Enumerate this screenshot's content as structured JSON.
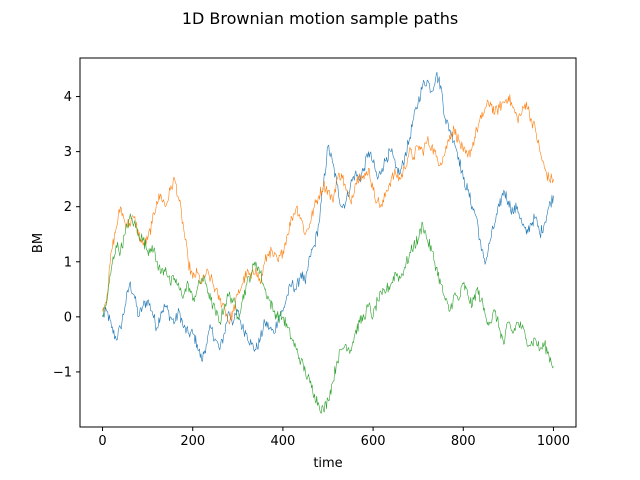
{
  "chart_data": {
    "type": "line",
    "title": "1D Brownian motion sample paths",
    "xlabel": "time",
    "ylabel": "BM",
    "xlim": [
      -50,
      1050
    ],
    "ylim": [
      -2.0,
      4.7
    ],
    "xticks": [
      0,
      200,
      400,
      600,
      800,
      1000
    ],
    "yticks": [
      -1,
      0,
      1,
      2,
      3,
      4
    ],
    "grid": false,
    "legend": "none",
    "series": [
      {
        "color": "#1f77b4",
        "x": [
          0,
          10,
          20,
          30,
          40,
          50,
          60,
          70,
          80,
          90,
          100,
          110,
          120,
          130,
          140,
          150,
          160,
          170,
          180,
          190,
          200,
          210,
          220,
          230,
          240,
          250,
          260,
          270,
          280,
          290,
          300,
          310,
          320,
          330,
          340,
          350,
          360,
          370,
          380,
          390,
          400,
          410,
          420,
          430,
          440,
          450,
          460,
          470,
          480,
          490,
          500,
          510,
          520,
          530,
          540,
          550,
          560,
          570,
          580,
          590,
          600,
          610,
          620,
          630,
          640,
          650,
          660,
          670,
          680,
          690,
          700,
          710,
          720,
          730,
          740,
          750,
          760,
          770,
          780,
          790,
          800,
          810,
          820,
          830,
          840,
          850,
          860,
          870,
          880,
          890,
          900,
          910,
          920,
          930,
          940,
          950,
          960,
          970,
          980,
          990,
          1000
        ],
        "y": [
          0.0,
          0.1,
          -0.2,
          -0.4,
          -0.2,
          0.2,
          0.6,
          0.4,
          0.0,
          0.2,
          0.3,
          0.1,
          -0.2,
          0.1,
          0.2,
          0.0,
          -0.1,
          0.1,
          -0.2,
          -0.3,
          -0.3,
          -0.5,
          -0.8,
          -0.5,
          -0.2,
          -0.4,
          -0.6,
          -0.3,
          0.1,
          -0.1,
          0.1,
          -0.2,
          -0.3,
          -0.5,
          -0.6,
          -0.4,
          -0.1,
          -0.2,
          -0.3,
          0.0,
          0.1,
          0.4,
          0.6,
          0.5,
          0.8,
          0.6,
          1.1,
          1.3,
          1.7,
          2.4,
          3.1,
          2.8,
          2.4,
          2.0,
          2.1,
          2.4,
          2.6,
          2.5,
          2.7,
          3.0,
          2.8,
          2.5,
          2.7,
          2.9,
          3.0,
          2.7,
          2.6,
          2.9,
          3.2,
          3.6,
          3.9,
          4.2,
          4.3,
          4.1,
          4.4,
          4.2,
          3.6,
          3.4,
          3.2,
          2.9,
          2.5,
          2.3,
          2.0,
          1.8,
          1.2,
          1.0,
          1.4,
          1.7,
          2.0,
          2.3,
          2.1,
          1.9,
          2.0,
          1.7,
          1.5,
          1.7,
          1.8,
          1.5,
          1.7,
          2.0,
          2.2
        ]
      },
      {
        "color": "#ff7f0e",
        "x": [
          0,
          10,
          20,
          30,
          40,
          50,
          60,
          70,
          80,
          90,
          100,
          110,
          120,
          130,
          140,
          150,
          160,
          170,
          180,
          190,
          200,
          210,
          220,
          230,
          240,
          250,
          260,
          270,
          280,
          290,
          300,
          310,
          320,
          330,
          340,
          350,
          360,
          370,
          380,
          390,
          400,
          410,
          420,
          430,
          440,
          450,
          460,
          470,
          480,
          490,
          500,
          510,
          520,
          530,
          540,
          550,
          560,
          570,
          580,
          590,
          600,
          610,
          620,
          630,
          640,
          650,
          660,
          670,
          680,
          690,
          700,
          710,
          720,
          730,
          740,
          750,
          760,
          770,
          780,
          790,
          800,
          810,
          820,
          830,
          840,
          850,
          860,
          870,
          880,
          890,
          900,
          910,
          920,
          930,
          940,
          950,
          960,
          970,
          980,
          990,
          1000
        ],
        "y": [
          0.1,
          0.4,
          1.2,
          1.6,
          2.0,
          1.7,
          1.7,
          1.8,
          1.5,
          1.3,
          1.4,
          1.7,
          2.1,
          2.2,
          2.0,
          2.3,
          2.5,
          2.1,
          1.6,
          1.0,
          0.7,
          0.8,
          0.6,
          0.8,
          0.7,
          0.5,
          0.3,
          0.2,
          -0.1,
          0.1,
          0.4,
          0.6,
          0.8,
          0.7,
          0.9,
          0.6,
          1.0,
          1.2,
          1.1,
          1.0,
          1.2,
          1.5,
          1.8,
          2.0,
          1.8,
          1.5,
          1.7,
          2.0,
          2.2,
          2.4,
          2.3,
          2.1,
          2.5,
          2.6,
          2.3,
          2.1,
          2.4,
          2.6,
          2.5,
          2.7,
          2.3,
          2.1,
          2.0,
          2.3,
          2.5,
          2.6,
          2.5,
          2.7,
          3.0,
          2.9,
          3.1,
          3.0,
          3.2,
          3.1,
          2.9,
          2.8,
          3.0,
          3.3,
          3.4,
          3.2,
          3.0,
          2.9,
          3.1,
          3.4,
          3.6,
          3.8,
          3.9,
          3.7,
          3.8,
          3.9,
          4.0,
          3.8,
          3.6,
          3.7,
          3.9,
          3.6,
          3.4,
          3.0,
          2.7,
          2.5,
          2.5
        ]
      },
      {
        "color": "#2ca02c",
        "x": [
          0,
          10,
          20,
          30,
          40,
          50,
          60,
          70,
          80,
          90,
          100,
          110,
          120,
          130,
          140,
          150,
          160,
          170,
          180,
          190,
          200,
          210,
          220,
          230,
          240,
          250,
          260,
          270,
          280,
          290,
          300,
          310,
          320,
          330,
          340,
          350,
          360,
          370,
          380,
          390,
          400,
          410,
          420,
          430,
          440,
          450,
          460,
          470,
          480,
          490,
          500,
          510,
          520,
          530,
          540,
          550,
          560,
          570,
          580,
          590,
          600,
          610,
          620,
          630,
          640,
          650,
          660,
          670,
          680,
          690,
          700,
          710,
          720,
          730,
          740,
          750,
          760,
          770,
          780,
          790,
          800,
          810,
          820,
          830,
          840,
          850,
          860,
          870,
          880,
          890,
          900,
          910,
          920,
          930,
          940,
          950,
          960,
          970,
          980,
          990,
          1000
        ],
        "y": [
          0.0,
          0.3,
          0.9,
          1.3,
          1.2,
          1.5,
          1.8,
          1.7,
          1.5,
          1.4,
          1.2,
          1.3,
          1.0,
          0.8,
          0.9,
          0.6,
          0.7,
          0.5,
          0.4,
          0.6,
          0.3,
          0.5,
          0.7,
          0.6,
          0.3,
          0.1,
          -0.1,
          0.2,
          0.4,
          0.3,
          0.0,
          0.3,
          0.6,
          0.8,
          1.0,
          0.8,
          0.5,
          0.3,
          0.1,
          0.0,
          0.0,
          -0.2,
          -0.4,
          -0.6,
          -0.8,
          -1.0,
          -1.2,
          -1.4,
          -1.6,
          -1.7,
          -1.5,
          -1.2,
          -0.8,
          -0.6,
          -0.5,
          -0.6,
          -0.3,
          -0.1,
          0.0,
          0.2,
          0.0,
          0.3,
          0.4,
          0.5,
          0.6,
          0.8,
          0.7,
          0.9,
          1.1,
          1.3,
          1.4,
          1.7,
          1.4,
          1.2,
          0.9,
          0.6,
          0.3,
          0.1,
          0.4,
          0.3,
          0.6,
          0.4,
          0.2,
          0.5,
          0.3,
          0.0,
          -0.1,
          0.1,
          -0.2,
          -0.5,
          -0.1,
          -0.3,
          -0.1,
          -0.2,
          -0.4,
          -0.5,
          -0.4,
          -0.6,
          -0.5,
          -0.7,
          -0.9
        ]
      }
    ]
  }
}
